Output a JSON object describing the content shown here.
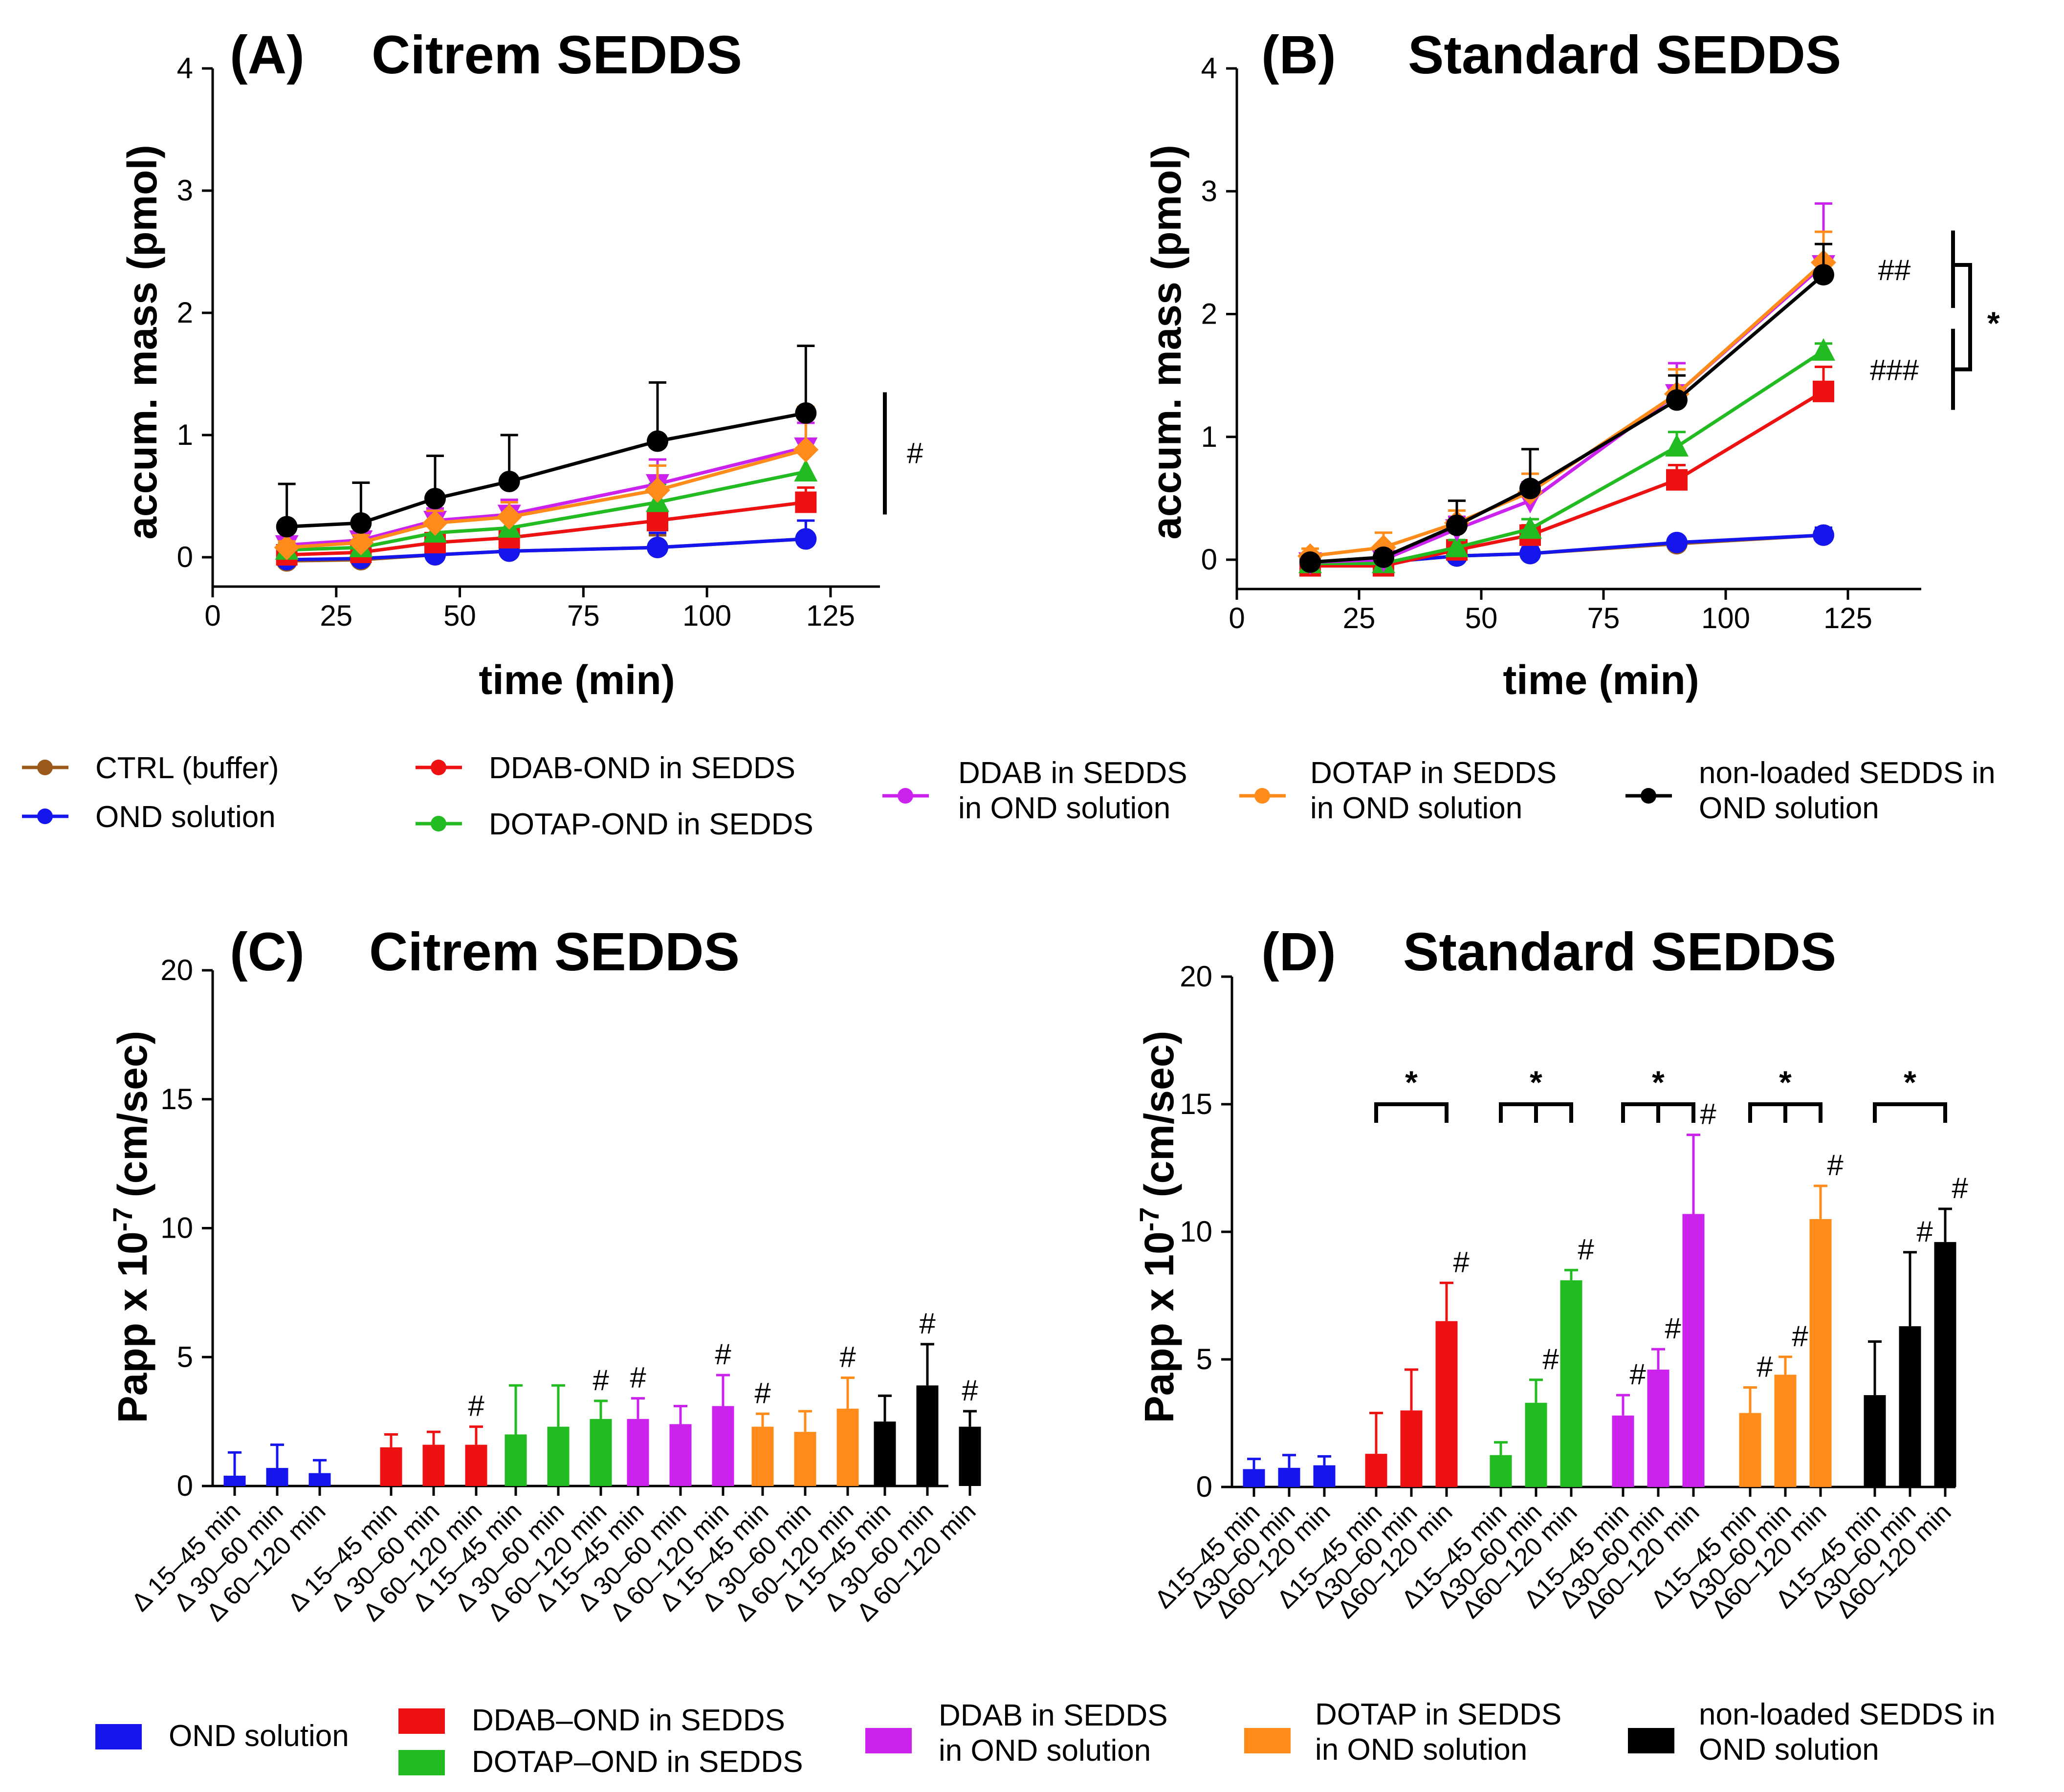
{
  "chart_data": [
    {
      "id": "A",
      "type": "line",
      "panel_label": "(A)",
      "title": "Citrem SEDDS",
      "xlabel": "time (min)",
      "ylabel": "accum. mass (pmol)",
      "xlim": [
        0,
        135
      ],
      "ylim": [
        0,
        4
      ],
      "xticks": [
        0,
        25,
        50,
        75,
        100,
        125
      ],
      "yticks": [
        0,
        1,
        2,
        3,
        4
      ],
      "x": [
        15,
        30,
        45,
        60,
        90,
        120
      ],
      "series": [
        {
          "name": "CTRL (buffer)",
          "color": "#9b5a1a",
          "marker": "circle",
          "values": [
            -0.03,
            -0.02,
            0.02,
            0.05,
            0.08,
            0.15
          ],
          "errors": [
            0.05,
            0.05,
            0.06,
            0.08,
            0.1,
            0.15
          ]
        },
        {
          "name": "OND solution",
          "color": "#1515ee",
          "marker": "circle",
          "values": [
            -0.02,
            -0.01,
            0.02,
            0.05,
            0.08,
            0.15
          ],
          "errors": [
            0.05,
            0.05,
            0.12,
            0.12,
            0.12,
            0.15
          ]
        },
        {
          "name": "DDAB-OND in SEDDS",
          "color": "#ee1111",
          "marker": "square",
          "values": [
            0.02,
            0.04,
            0.12,
            0.16,
            0.3,
            0.45
          ],
          "errors": [
            0.04,
            0.05,
            0.06,
            0.07,
            0.1,
            0.12
          ]
        },
        {
          "name": "DOTAP-OND in SEDDS",
          "color": "#22bb22",
          "marker": "triangle",
          "values": [
            0.06,
            0.08,
            0.2,
            0.24,
            0.45,
            0.7
          ],
          "errors": [
            0.05,
            0.05,
            0.08,
            0.1,
            0.15,
            0.18
          ]
        },
        {
          "name": "DDAB in SEDDS in OND solution",
          "color": "#cc22ee",
          "marker": "triangle-down",
          "values": [
            0.1,
            0.14,
            0.3,
            0.35,
            0.6,
            0.9
          ],
          "errors": [
            0.05,
            0.06,
            0.1,
            0.12,
            0.2,
            0.2
          ]
        },
        {
          "name": "DOTAP in SEDDS in OND solution",
          "color": "#ff8c1a",
          "marker": "diamond",
          "values": [
            0.08,
            0.12,
            0.28,
            0.33,
            0.55,
            0.88
          ],
          "errors": [
            0.05,
            0.06,
            0.1,
            0.12,
            0.2,
            0.35
          ]
        },
        {
          "name": "non-loaded SEDDS in OND solution",
          "color": "#000000",
          "marker": "circle",
          "values": [
            0.25,
            0.28,
            0.48,
            0.62,
            0.95,
            1.18
          ],
          "errors": [
            0.35,
            0.33,
            0.35,
            0.38,
            0.48,
            0.55
          ]
        }
      ],
      "annotations": [
        {
          "text": "#",
          "type": "bracket",
          "y_from": 0.35,
          "y_to": 1.35
        }
      ]
    },
    {
      "id": "B",
      "type": "line",
      "panel_label": "(B)",
      "title": "Standard SEDDS",
      "xlabel": "time (min)",
      "ylabel": "accum. mass (pmol)",
      "xlim": [
        0,
        140
      ],
      "ylim": [
        0,
        4
      ],
      "xticks": [
        0,
        25,
        50,
        75,
        100,
        125
      ],
      "yticks": [
        0,
        1,
        2,
        3,
        4
      ],
      "x": [
        15,
        30,
        45,
        60,
        90,
        120
      ],
      "series": [
        {
          "name": "CTRL (buffer)",
          "color": "#9b5a1a",
          "marker": "circle",
          "values": [
            -0.03,
            -0.02,
            0.03,
            0.05,
            0.13,
            0.2
          ],
          "errors": [
            0.04,
            0.04,
            0.05,
            0.05,
            0.04,
            0.06
          ]
        },
        {
          "name": "OND solution",
          "color": "#1515ee",
          "marker": "circle",
          "values": [
            -0.03,
            -0.02,
            0.03,
            0.05,
            0.14,
            0.2
          ],
          "errors": [
            0.04,
            0.04,
            0.08,
            0.05,
            0.04,
            0.06
          ]
        },
        {
          "name": "DDAB-OND in SEDDS",
          "color": "#ee1111",
          "marker": "square",
          "values": [
            -0.05,
            -0.05,
            0.08,
            0.2,
            0.65,
            1.37
          ],
          "errors": [
            0.04,
            0.05,
            0.06,
            0.08,
            0.12,
            0.2
          ]
        },
        {
          "name": "DOTAP-OND in SEDDS",
          "color": "#22bb22",
          "marker": "triangle",
          "values": [
            -0.03,
            -0.03,
            0.1,
            0.25,
            0.92,
            1.7
          ],
          "errors": [
            0.04,
            0.05,
            0.06,
            0.08,
            0.12,
            0.06
          ]
        },
        {
          "name": "DDAB in SEDDS in OND solution",
          "color": "#cc22ee",
          "marker": "triangle-down",
          "values": [
            -0.02,
            0.0,
            0.25,
            0.48,
            1.35,
            2.4
          ],
          "errors": [
            0.04,
            0.05,
            0.1,
            0.15,
            0.25,
            0.5
          ]
        },
        {
          "name": "DOTAP in SEDDS in OND solution",
          "color": "#ff8c1a",
          "marker": "diamond",
          "values": [
            0.03,
            0.1,
            0.3,
            0.55,
            1.35,
            2.42
          ],
          "errors": [
            0.06,
            0.12,
            0.1,
            0.15,
            0.2,
            0.25
          ]
        },
        {
          "name": "non-loaded SEDDS in OND solution",
          "color": "#000000",
          "marker": "circle",
          "values": [
            -0.02,
            0.02,
            0.28,
            0.58,
            1.3,
            2.32
          ],
          "errors": [
            0.04,
            0.05,
            0.2,
            0.32,
            0.2,
            0.25
          ]
        }
      ],
      "annotations": [
        {
          "text": "##",
          "type": "bracket",
          "y_from": 2.05,
          "y_to": 2.68
        },
        {
          "text": "###",
          "type": "bracket",
          "y_from": 1.22,
          "y_to": 1.88
        },
        {
          "text": "*",
          "type": "compare-bracket",
          "y_from": 2.4,
          "y_to": 1.55
        }
      ]
    },
    {
      "id": "C",
      "type": "bar",
      "panel_label": "(C)",
      "title": "Citrem SEDDS",
      "ylabel": "Papp x 10",
      "ylabel_exponent": "-7",
      "ylabel_unit": "(cm/sec)",
      "ylim": [
        0,
        20
      ],
      "yticks": [
        0,
        5,
        10,
        15,
        20
      ],
      "groups": [
        {
          "name": "OND solution",
          "color": "#1515ee",
          "bars": [
            {
              "label": "Δ 15–45 min",
              "value": 0.4,
              "error": 0.9,
              "mark": ""
            },
            {
              "label": "Δ 30–60 min",
              "value": 0.7,
              "error": 0.9,
              "mark": ""
            },
            {
              "label": "Δ 60–120 min",
              "value": 0.5,
              "error": 0.5,
              "mark": ""
            }
          ]
        },
        {
          "name": "DDAB–OND in SEDDS",
          "color": "#ee1111",
          "bars": [
            {
              "label": "Δ 15–45 min",
              "value": 1.5,
              "error": 0.5,
              "mark": ""
            },
            {
              "label": "Δ 30–60 min",
              "value": 1.6,
              "error": 0.5,
              "mark": ""
            },
            {
              "label": "Δ 60–120 min",
              "value": 1.6,
              "error": 0.7,
              "mark": "#"
            }
          ]
        },
        {
          "name": "DOTAP–OND in SEDDS",
          "color": "#22bb22",
          "bars": [
            {
              "label": "Δ 15–45 min",
              "value": 2.0,
              "error": 1.9,
              "mark": ""
            },
            {
              "label": "Δ 30–60 min",
              "value": 2.3,
              "error": 1.6,
              "mark": ""
            },
            {
              "label": "Δ 60–120 min",
              "value": 2.6,
              "error": 0.7,
              "mark": "#"
            }
          ]
        },
        {
          "name": "DDAB in SEDDS in OND solution",
          "color": "#cc22ee",
          "bars": [
            {
              "label": "Δ 15–45 min",
              "value": 2.6,
              "error": 0.8,
              "mark": "#"
            },
            {
              "label": "Δ 30–60 min",
              "value": 2.4,
              "error": 0.7,
              "mark": ""
            },
            {
              "label": "Δ 60–120 min",
              "value": 3.1,
              "error": 1.2,
              "mark": "#"
            }
          ]
        },
        {
          "name": "DOTAP in SEDDS in OND solution",
          "color": "#ff8c1a",
          "bars": [
            {
              "label": "Δ 15–45 min",
              "value": 2.3,
              "error": 0.5,
              "mark": "#"
            },
            {
              "label": "Δ 30–60 min",
              "value": 2.1,
              "error": 0.8,
              "mark": ""
            },
            {
              "label": "Δ 60–120 min",
              "value": 3.0,
              "error": 1.2,
              "mark": "#"
            }
          ]
        },
        {
          "name": "non-loaded SEDDS in OND solution",
          "color": "#000000",
          "bars": [
            {
              "label": "Δ 15–45 min",
              "value": 2.5,
              "error": 1.0,
              "mark": ""
            },
            {
              "label": "Δ 30–60 min",
              "value": 3.9,
              "error": 1.6,
              "mark": "#"
            },
            {
              "label": "Δ 60–120 min",
              "value": 2.3,
              "error": 0.6,
              "mark": "#"
            }
          ]
        }
      ],
      "brackets": []
    },
    {
      "id": "D",
      "type": "bar",
      "panel_label": "(D)",
      "title": "Standard SEDDS",
      "ylabel": "Papp x 10",
      "ylabel_exponent": "-7",
      "ylabel_unit": "(cm/sec)",
      "ylim": [
        0,
        20
      ],
      "yticks": [
        0,
        5,
        10,
        15,
        20
      ],
      "groups": [
        {
          "name": "OND solution",
          "color": "#1515ee",
          "bars": [
            {
              "label": "Δ15–45 min",
              "value": 0.7,
              "error": 0.4,
              "mark": ""
            },
            {
              "label": "Δ30–60 min",
              "value": 0.75,
              "error": 0.5,
              "mark": ""
            },
            {
              "label": "Δ60–120 min",
              "value": 0.85,
              "error": 0.35,
              "mark": ""
            }
          ]
        },
        {
          "name": "DDAB–OND in SEDDS",
          "color": "#ee1111",
          "bars": [
            {
              "label": "Δ15–45 min",
              "value": 1.3,
              "error": 1.6,
              "mark": ""
            },
            {
              "label": "Δ30–60 min",
              "value": 3.0,
              "error": 1.6,
              "mark": ""
            },
            {
              "label": "Δ60–120 min",
              "value": 6.5,
              "error": 1.5,
              "mark": "#"
            }
          ]
        },
        {
          "name": "DOTAP–OND in SEDDS",
          "color": "#22bb22",
          "bars": [
            {
              "label": "Δ15–45 min",
              "value": 1.25,
              "error": 0.5,
              "mark": ""
            },
            {
              "label": "Δ30–60 min",
              "value": 3.3,
              "error": 0.9,
              "mark": "#"
            },
            {
              "label": "Δ60–120 min",
              "value": 8.1,
              "error": 0.4,
              "mark": "#"
            }
          ]
        },
        {
          "name": "DDAB in SEDDS in OND solution",
          "color": "#cc22ee",
          "bars": [
            {
              "label": "Δ15–45 min",
              "value": 2.8,
              "error": 0.8,
              "mark": "#"
            },
            {
              "label": "Δ30–60 min",
              "value": 4.6,
              "error": 0.8,
              "mark": "#"
            },
            {
              "label": "Δ60–120 min",
              "value": 10.7,
              "error": 3.1,
              "mark": "#"
            }
          ]
        },
        {
          "name": "DOTAP in SEDDS in OND solution",
          "color": "#ff8c1a",
          "bars": [
            {
              "label": "Δ15–45 min",
              "value": 2.9,
              "error": 1.0,
              "mark": "#"
            },
            {
              "label": "Δ30–60 min",
              "value": 4.4,
              "error": 0.7,
              "mark": "#"
            },
            {
              "label": "Δ60–120 min",
              "value": 10.5,
              "error": 1.3,
              "mark": "#"
            }
          ]
        },
        {
          "name": "non-loaded SEDDS in OND solution",
          "color": "#000000",
          "bars": [
            {
              "label": "Δ15–45 min",
              "value": 3.6,
              "error": 2.1,
              "mark": ""
            },
            {
              "label": "Δ30–60 min",
              "value": 6.3,
              "error": 2.9,
              "mark": "#"
            },
            {
              "label": "Δ60–120 min",
              "value": 9.6,
              "error": 1.3,
              "mark": "#"
            }
          ]
        }
      ],
      "brackets": [
        {
          "group": 1,
          "ticks": [
            0,
            2
          ],
          "y": 15,
          "text": "*"
        },
        {
          "group": 2,
          "ticks": [
            0,
            1,
            2
          ],
          "y": 15,
          "text": "*"
        },
        {
          "group": 3,
          "ticks": [
            0,
            1,
            2
          ],
          "y": 15,
          "text": "*"
        },
        {
          "group": 4,
          "ticks": [
            0,
            1,
            2
          ],
          "y": 15,
          "text": "*"
        },
        {
          "group": 5,
          "ticks": [
            0,
            2
          ],
          "y": 15,
          "text": "*"
        }
      ]
    }
  ],
  "legend_top": [
    {
      "label": "CTRL (buffer)",
      "color": "#9b5a1a"
    },
    {
      "label": "OND solution",
      "color": "#1515ee"
    },
    {
      "label": "DDAB-OND in SEDDS",
      "color": "#ee1111"
    },
    {
      "label": "DOTAP-OND in SEDDS",
      "color": "#22bb22"
    },
    {
      "label": "DDAB in SEDDS in OND solution",
      "lines": [
        "DDAB in SEDDS",
        "in OND solution"
      ],
      "color": "#cc22ee"
    },
    {
      "label": "DOTAP in SEDDS in OND solution",
      "lines": [
        "DOTAP in SEDDS",
        "in OND solution"
      ],
      "color": "#ff8c1a"
    },
    {
      "label": "non-loaded SEDDS in OND solution",
      "lines": [
        "non-loaded SEDDS in",
        "OND solution"
      ],
      "color": "#000000"
    }
  ],
  "legend_bottom": [
    {
      "label": "OND solution",
      "color": "#1515ee"
    },
    {
      "label": "DDAB–OND in SEDDS",
      "color": "#ee1111"
    },
    {
      "label": "DOTAP–OND in SEDDS",
      "color": "#22bb22"
    },
    {
      "label": "DDAB in SEDDS in OND solution",
      "lines": [
        "DDAB in SEDDS",
        "in OND solution"
      ],
      "color": "#cc22ee"
    },
    {
      "label": "DOTAP in SEDDS in OND solution",
      "lines": [
        "DOTAP in SEDDS",
        "in OND solution"
      ],
      "color": "#ff8c1a"
    },
    {
      "label": "non-loaded SEDDS in OND solution",
      "lines": [
        "non-loaded SEDDS in",
        "OND solution"
      ],
      "color": "#000000"
    }
  ]
}
